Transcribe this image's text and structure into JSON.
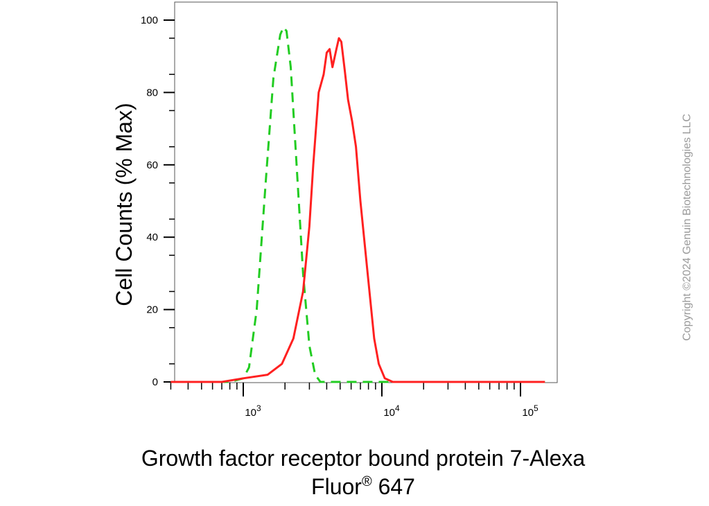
{
  "chart_data": {
    "type": "line",
    "title": "",
    "xlabel_line1": "Growth factor receptor bound protein 7-Alexa",
    "xlabel_line2_main": "Fluor",
    "xlabel_line2_sup": "®",
    "xlabel_line2_tail": " 647",
    "ylabel": "Cell Counts (% Max)",
    "xscale": "log",
    "xlim": [
      300,
      150000
    ],
    "ylim": [
      0,
      100
    ],
    "y_ticks": [
      "0",
      "20",
      "40",
      "60",
      "80",
      "100"
    ],
    "x_ticks": [
      {
        "value": 1000,
        "base": "10",
        "exp": "3"
      },
      {
        "value": 10000,
        "base": "10",
        "exp": "4"
      },
      {
        "value": 100000,
        "base": "10",
        "exp": "5"
      }
    ],
    "series": [
      {
        "color": "#22cc22",
        "dash": "dashed",
        "points": [
          [
            300,
            0
          ],
          [
            800,
            0
          ],
          [
            1000,
            1
          ],
          [
            1100,
            4
          ],
          [
            1250,
            20
          ],
          [
            1450,
            55
          ],
          [
            1650,
            84
          ],
          [
            1850,
            96
          ],
          [
            1950,
            98
          ],
          [
            2050,
            97
          ],
          [
            2200,
            87
          ],
          [
            2400,
            63
          ],
          [
            2700,
            30
          ],
          [
            3000,
            10
          ],
          [
            3300,
            2
          ],
          [
            3600,
            0
          ],
          [
            5000,
            0
          ],
          [
            150000,
            0
          ]
        ]
      },
      {
        "color": "#ff2020",
        "dash": "solid",
        "points": [
          [
            300,
            0
          ],
          [
            700,
            0
          ],
          [
            1000,
            1
          ],
          [
            1500,
            2
          ],
          [
            1900,
            5
          ],
          [
            2300,
            12
          ],
          [
            2700,
            25
          ],
          [
            3000,
            43
          ],
          [
            3200,
            60
          ],
          [
            3500,
            80
          ],
          [
            3800,
            85
          ],
          [
            4000,
            91
          ],
          [
            4200,
            92
          ],
          [
            4400,
            87
          ],
          [
            4700,
            92
          ],
          [
            4900,
            95
          ],
          [
            5100,
            94
          ],
          [
            5400,
            86
          ],
          [
            5700,
            78
          ],
          [
            6100,
            72
          ],
          [
            6500,
            65
          ],
          [
            7000,
            50
          ],
          [
            7800,
            32
          ],
          [
            8800,
            12
          ],
          [
            9500,
            5
          ],
          [
            10500,
            1
          ],
          [
            12000,
            0
          ],
          [
            150000,
            0
          ]
        ]
      }
    ]
  },
  "watermark": "Copyright ©2024 Genuin Biotechnologies LLC"
}
